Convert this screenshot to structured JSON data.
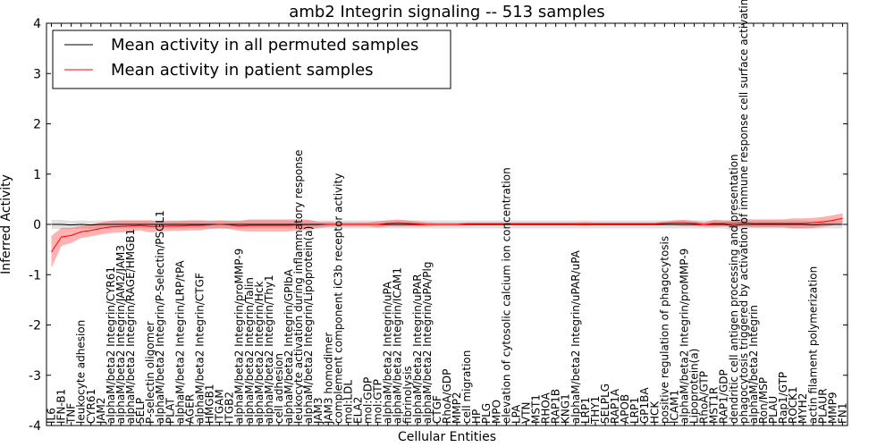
{
  "chart_data": {
    "type": "line",
    "title": "amb2 Integrin signaling -- 513 samples",
    "xlabel": "Cellular Entities",
    "ylabel": "Inferred Activity",
    "ylim": [
      -4,
      4
    ],
    "yticks": [
      -4,
      -3,
      -2,
      -1,
      0,
      1,
      2,
      3,
      4
    ],
    "grid": false,
    "legend_position": "top-left",
    "categories": [
      "IL6",
      "IFN-B1",
      "TNF",
      "leukocyte adhesion",
      "CYR61",
      "JAM2",
      "alphaM/beta2 Integrin/CYR61",
      "alphaM/beta2 Integrin/JAM2/JAM3",
      "alphaM/beta2 Integrin/RAGE/HMGB1",
      "SELP",
      "P-selectin oligomer",
      "alphaM/beta2 Integrin/P-Selectin/PSGL1",
      "PLAT",
      "alphaM/beta2 Integrin/LRP/tPA",
      "AGER",
      "alphaM/beta2 Integrin/CTGF",
      "HMGB1",
      "ITGAM",
      "ITGB2",
      "alphaM/beta2 Integrin/proMMP-9",
      "alphaM/beta2 Integrin/Talin",
      "alphaM/beta2 Integrin/Hck",
      "alphaM/beta2 Integrin/Thy1",
      "cell adhesion",
      "alphaM/beta2 Integrin/GPIbA",
      "leukocyte activation during inflammatory response",
      "alphaM/beta2 Integrin/Lipoprotein(a)",
      "JAM3",
      "JAM3 homodimer",
      "complement component iC3b receptor activity",
      "mol:LDL",
      "ELA2",
      "mol:GDP",
      "mol:GTP",
      "alphaM/beta2 Integrin/uPA",
      "alphaM/beta2 Integrin/ICAM1",
      "fibrinolysis",
      "alphaM/beta2 Integrin/uPAR",
      "alphaM/beta2 Integrin/uPA/Plg",
      "CTGF",
      "RhoA/GDP",
      "MMP2",
      "cell migration",
      "HP",
      "PLG",
      "MPO",
      "elevation of cytosolic calcium ion concentration",
      "LPA",
      "VTN",
      "MST1",
      "RHOA",
      "RAP1B",
      "KNG1",
      "alphaM/beta2 Integrin/uPAR/uPA",
      "LRP1",
      "THY1",
      "SELPLG",
      "RAP1A",
      "APOB",
      "LRP1",
      "GP1BA",
      "HCK",
      "positive regulation of phagocytosis",
      "ICAM1",
      "alphaM/beta2 Integrin/proMMP-9",
      "Lipoprotein(a)",
      "RhoA/GTP",
      "MST1R",
      "RAP1/GDP",
      "dendritic cell antigen processing and presentation",
      "phagocytosis triggered by activation of immune response cell surface activating receptor",
      "alphaM/beta2 Integrin",
      "Ron/MSP",
      "PLAU",
      "Rap1/GTP",
      "ROCK1",
      "MYH2",
      "actin filament polymerization",
      "PLAUR",
      "MMP9",
      "FN1"
    ],
    "series": [
      {
        "name": "Mean activity in all permuted samples",
        "color": "#000000",
        "values": [
          0.0,
          0.0,
          -0.01,
          0.0,
          -0.01,
          0.0,
          0.0,
          0.0,
          0.0,
          0.0,
          0.0,
          0.0,
          0.0,
          0.0,
          0.0,
          0.0,
          0.0,
          0.0,
          0.0,
          0.0,
          0.0,
          0.0,
          0.0,
          0.0,
          0.0,
          0.0,
          0.0,
          0.0,
          0.0,
          0.0,
          0.0,
          0.0,
          0.0,
          0.0,
          0.0,
          0.0,
          0.0,
          0.0,
          0.0,
          0.0,
          0.0,
          0.0,
          0.0,
          0.0,
          0.0,
          0.0,
          0.0,
          0.0,
          0.0,
          0.0,
          0.0,
          0.0,
          0.0,
          0.0,
          0.0,
          0.0,
          0.0,
          0.0,
          0.0,
          0.0,
          0.0,
          0.0,
          0.0,
          0.0,
          0.0,
          0.0,
          0.0,
          0.0,
          0.0,
          -0.02,
          0.0,
          0.0,
          0.0,
          0.0,
          0.0,
          0.0,
          0.0,
          -0.01,
          0.0,
          0.0,
          0.0
        ],
        "band": [
          0.09,
          0.09,
          0.08,
          0.08,
          0.08,
          0.08,
          0.08,
          0.08,
          0.08,
          0.08,
          0.08,
          0.08,
          0.08,
          0.08,
          0.08,
          0.08,
          0.08,
          0.08,
          0.08,
          0.08,
          0.08,
          0.08,
          0.08,
          0.08,
          0.08,
          0.08,
          0.08,
          0.08,
          0.08,
          0.08,
          0.08,
          0.08,
          0.08,
          0.08,
          0.08,
          0.08,
          0.08,
          0.08,
          0.08,
          0.08,
          0.08,
          0.08,
          0.08,
          0.08,
          0.08,
          0.08,
          0.08,
          0.08,
          0.08,
          0.08,
          0.08,
          0.08,
          0.08,
          0.08,
          0.08,
          0.08,
          0.08,
          0.08,
          0.08,
          0.08,
          0.08,
          0.08,
          0.08,
          0.08,
          0.08,
          0.08,
          0.08,
          0.08,
          0.08,
          0.1,
          0.08,
          0.08,
          0.08,
          0.08,
          0.08,
          0.08,
          0.08,
          0.08,
          0.08,
          0.08,
          0.08
        ]
      },
      {
        "name": "Mean activity in patient samples",
        "color": "#ff0000",
        "values": [
          -0.55,
          -0.25,
          -0.22,
          -0.15,
          -0.12,
          -0.08,
          -0.05,
          -0.04,
          -0.03,
          -0.02,
          -0.04,
          -0.04,
          -0.03,
          -0.03,
          -0.02,
          -0.02,
          -0.01,
          0.0,
          -0.01,
          -0.03,
          -0.02,
          -0.02,
          -0.02,
          -0.02,
          -0.02,
          -0.01,
          -0.01,
          -0.01,
          0.0,
          0.0,
          0.0,
          0.0,
          0.0,
          0.0,
          0.02,
          0.03,
          0.02,
          0.01,
          0.0,
          0.0,
          0.0,
          0.0,
          0.01,
          0.01,
          0.01,
          0.01,
          0.01,
          0.01,
          0.01,
          0.01,
          0.01,
          0.01,
          0.01,
          0.01,
          0.01,
          0.01,
          0.01,
          0.01,
          0.01,
          0.01,
          0.01,
          0.01,
          0.02,
          0.03,
          0.03,
          0.02,
          0.0,
          0.02,
          0.02,
          0.02,
          0.03,
          0.02,
          0.02,
          0.02,
          0.02,
          0.02,
          0.02,
          0.03,
          0.05,
          0.08,
          0.12
        ],
        "band": [
          0.32,
          0.18,
          0.15,
          0.12,
          0.12,
          0.12,
          0.12,
          0.12,
          0.11,
          0.1,
          0.12,
          0.1,
          0.1,
          0.1,
          0.1,
          0.1,
          0.08,
          0.08,
          0.08,
          0.1,
          0.12,
          0.12,
          0.12,
          0.12,
          0.12,
          0.11,
          0.1,
          0.06,
          0.05,
          0.04,
          0.04,
          0.04,
          0.04,
          0.06,
          0.06,
          0.07,
          0.06,
          0.05,
          0.04,
          0.03,
          0.03,
          0.03,
          0.03,
          0.03,
          0.03,
          0.03,
          0.03,
          0.03,
          0.03,
          0.03,
          0.03,
          0.03,
          0.03,
          0.03,
          0.04,
          0.03,
          0.03,
          0.03,
          0.03,
          0.03,
          0.03,
          0.03,
          0.04,
          0.05,
          0.06,
          0.05,
          0.04,
          0.07,
          0.06,
          0.06,
          0.08,
          0.08,
          0.08,
          0.08,
          0.08,
          0.1,
          0.1,
          0.1,
          0.1,
          0.1,
          0.1
        ]
      }
    ]
  }
}
